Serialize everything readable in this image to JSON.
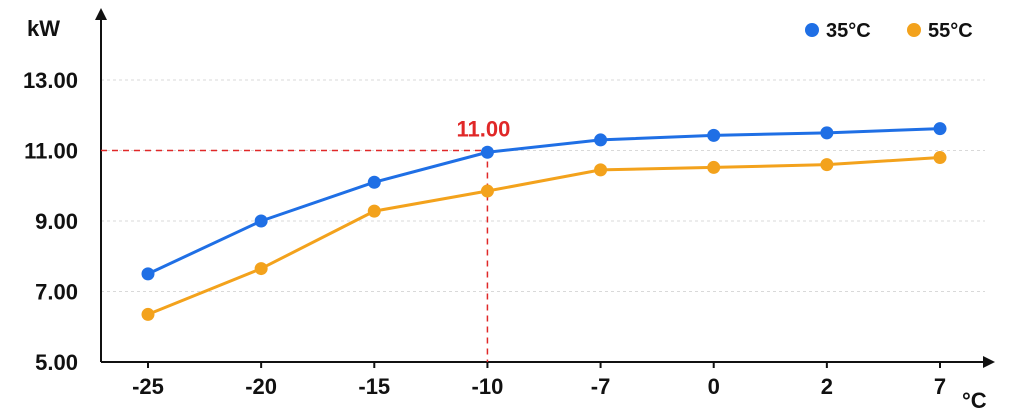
{
  "chart_data": {
    "type": "line",
    "categories": [
      "-25",
      "-20",
      "-15",
      "-10",
      "-7",
      "0",
      "2",
      "7"
    ],
    "series": [
      {
        "name": "35°C",
        "color": "#1f6fe5",
        "values": [
          7.5,
          9.0,
          10.1,
          10.95,
          11.3,
          11.43,
          11.5,
          11.62
        ]
      },
      {
        "name": "55°C",
        "color": "#f3a21c",
        "values": [
          6.35,
          7.65,
          9.28,
          9.85,
          10.45,
          10.52,
          10.6,
          10.8
        ]
      }
    ],
    "xlabel": "°C",
    "ylabel": "kW",
    "ylim": [
      5.0,
      13.0
    ],
    "yticks": [
      "5.00",
      "7.00",
      "9.00",
      "11.00",
      "13.00"
    ],
    "grid": true,
    "legend_position": "top-right",
    "annotation": {
      "category": "-10",
      "value": 11.0,
      "label": "11.00",
      "color": "#e02828"
    }
  }
}
